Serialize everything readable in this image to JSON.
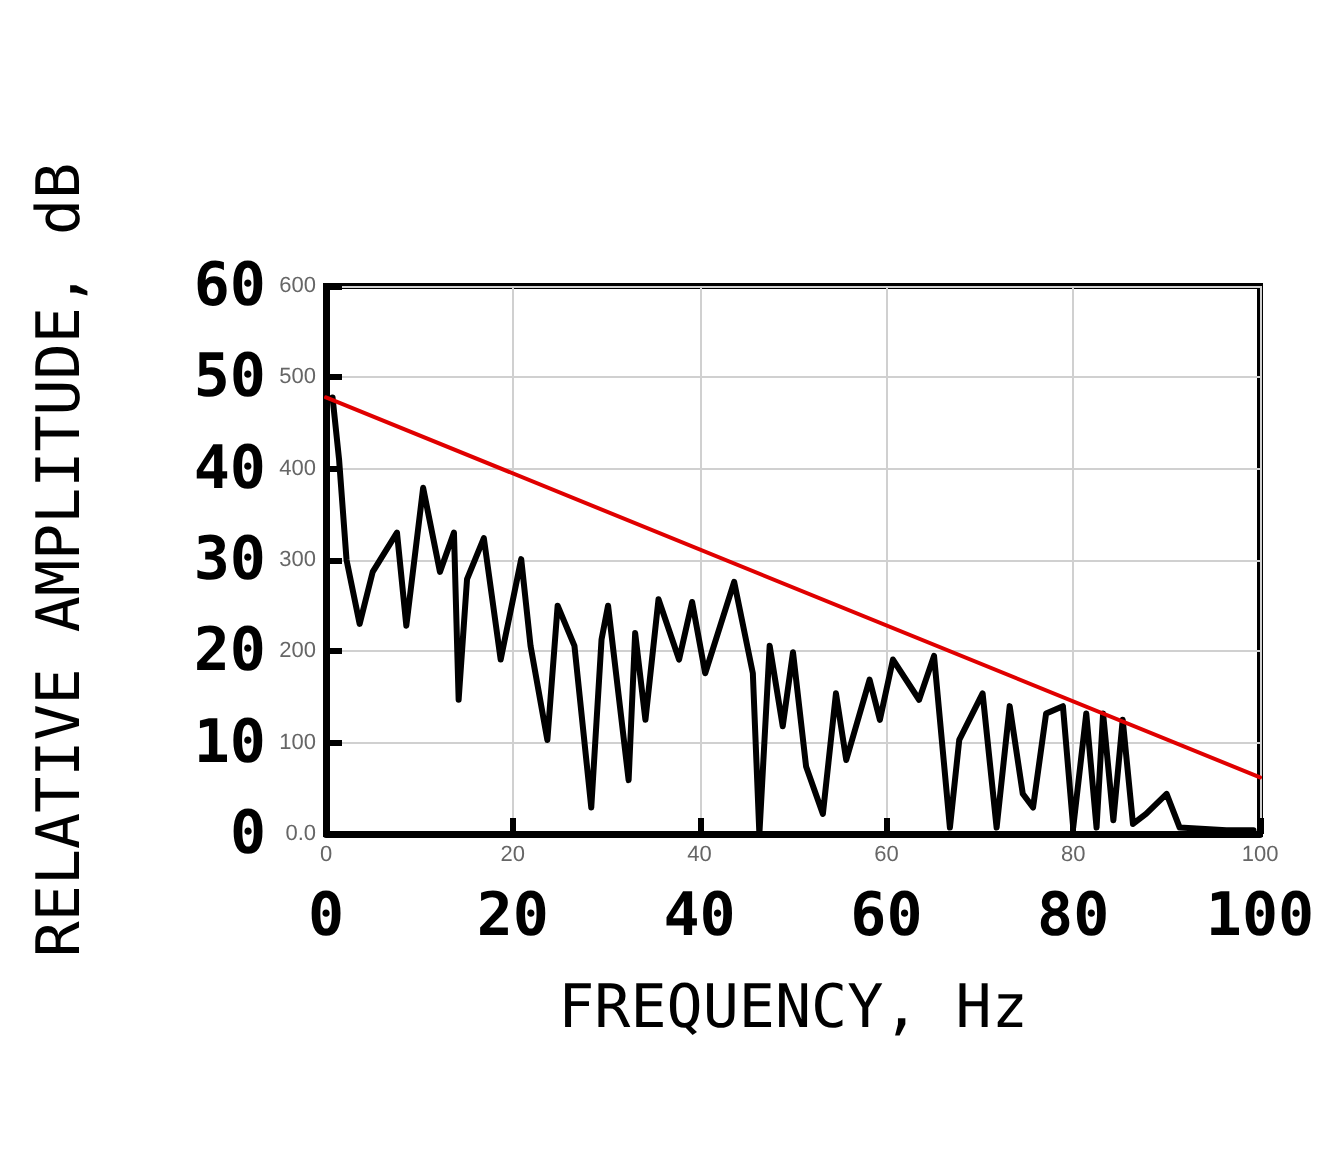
{
  "chart_data": {
    "type": "line",
    "xlabel": "FREQUENCY, Hz",
    "ylabel": "RELATIVE AMPLITUDE, dB",
    "xlim": [
      0,
      100
    ],
    "xticks": [
      0,
      20,
      40,
      60,
      80,
      100
    ],
    "ylim": [
      0,
      60
    ],
    "yticks": [
      0,
      10,
      20,
      30,
      40,
      50,
      60
    ],
    "x2lim": [
      0,
      100
    ],
    "x2ticks": [
      0,
      20,
      40,
      60,
      80,
      100
    ],
    "y2lim": [
      0,
      600
    ],
    "y2ticks": [
      {
        "value": 0,
        "label": "0.0"
      },
      100,
      200,
      300,
      400,
      500,
      600
    ],
    "grid": true,
    "marker": "none",
    "line_style": "solid",
    "series": [
      {
        "color": "#000000",
        "x": [
          0.7,
          1.4,
          2.2,
          3.6,
          5,
          7.6,
          8.6,
          10.4,
          12.2,
          13.7,
          14.2,
          15.1,
          16.9,
          18.7,
          20.9,
          21.9,
          23.7,
          24.8,
          26.6,
          28.4,
          29.5,
          30.2,
          32.4,
          33.1,
          34.2,
          35.6,
          37.8,
          39.2,
          40.6,
          43.7,
          45.7,
          46.4,
          47.5,
          48.9,
          50,
          51.4,
          53.2,
          54.6,
          55.7,
          58.2,
          59.3,
          60.7,
          63.5,
          65.1,
          66.8,
          67.8,
          70.3,
          71.8,
          73.2,
          74.6,
          75.7,
          77.1,
          78.9,
          80,
          81.4,
          82.5,
          83.2,
          84.3,
          85.3,
          86.4,
          87.8,
          90,
          91.4,
          96.4,
          99.3
        ],
        "values": [
          47.8,
          41,
          30,
          23,
          28.7,
          33,
          22.8,
          37.9,
          28.7,
          33,
          14.7,
          27.9,
          32.4,
          19.1,
          30.1,
          20.6,
          10.3,
          25,
          20.6,
          2.9,
          21.3,
          25,
          5.9,
          22,
          12.5,
          25.7,
          19.1,
          25.4,
          17.6,
          27.6,
          17.6,
          0,
          20.6,
          11.8,
          19.9,
          7.4,
          2.2,
          15.4,
          8.1,
          16.9,
          12.5,
          19.1,
          14.7,
          19.5,
          0.7,
          10.3,
          15.4,
          0.7,
          14,
          4.4,
          2.9,
          13.2,
          14,
          0.7,
          13.2,
          0.7,
          13.2,
          1.5,
          12.5,
          1.1,
          2.2,
          4.4,
          0.7,
          0.4,
          0.4
        ]
      },
      {
        "color": "#e00000",
        "axis": "y2",
        "x": [
          0,
          100
        ],
        "values": [
          478,
          62
        ]
      }
    ]
  }
}
